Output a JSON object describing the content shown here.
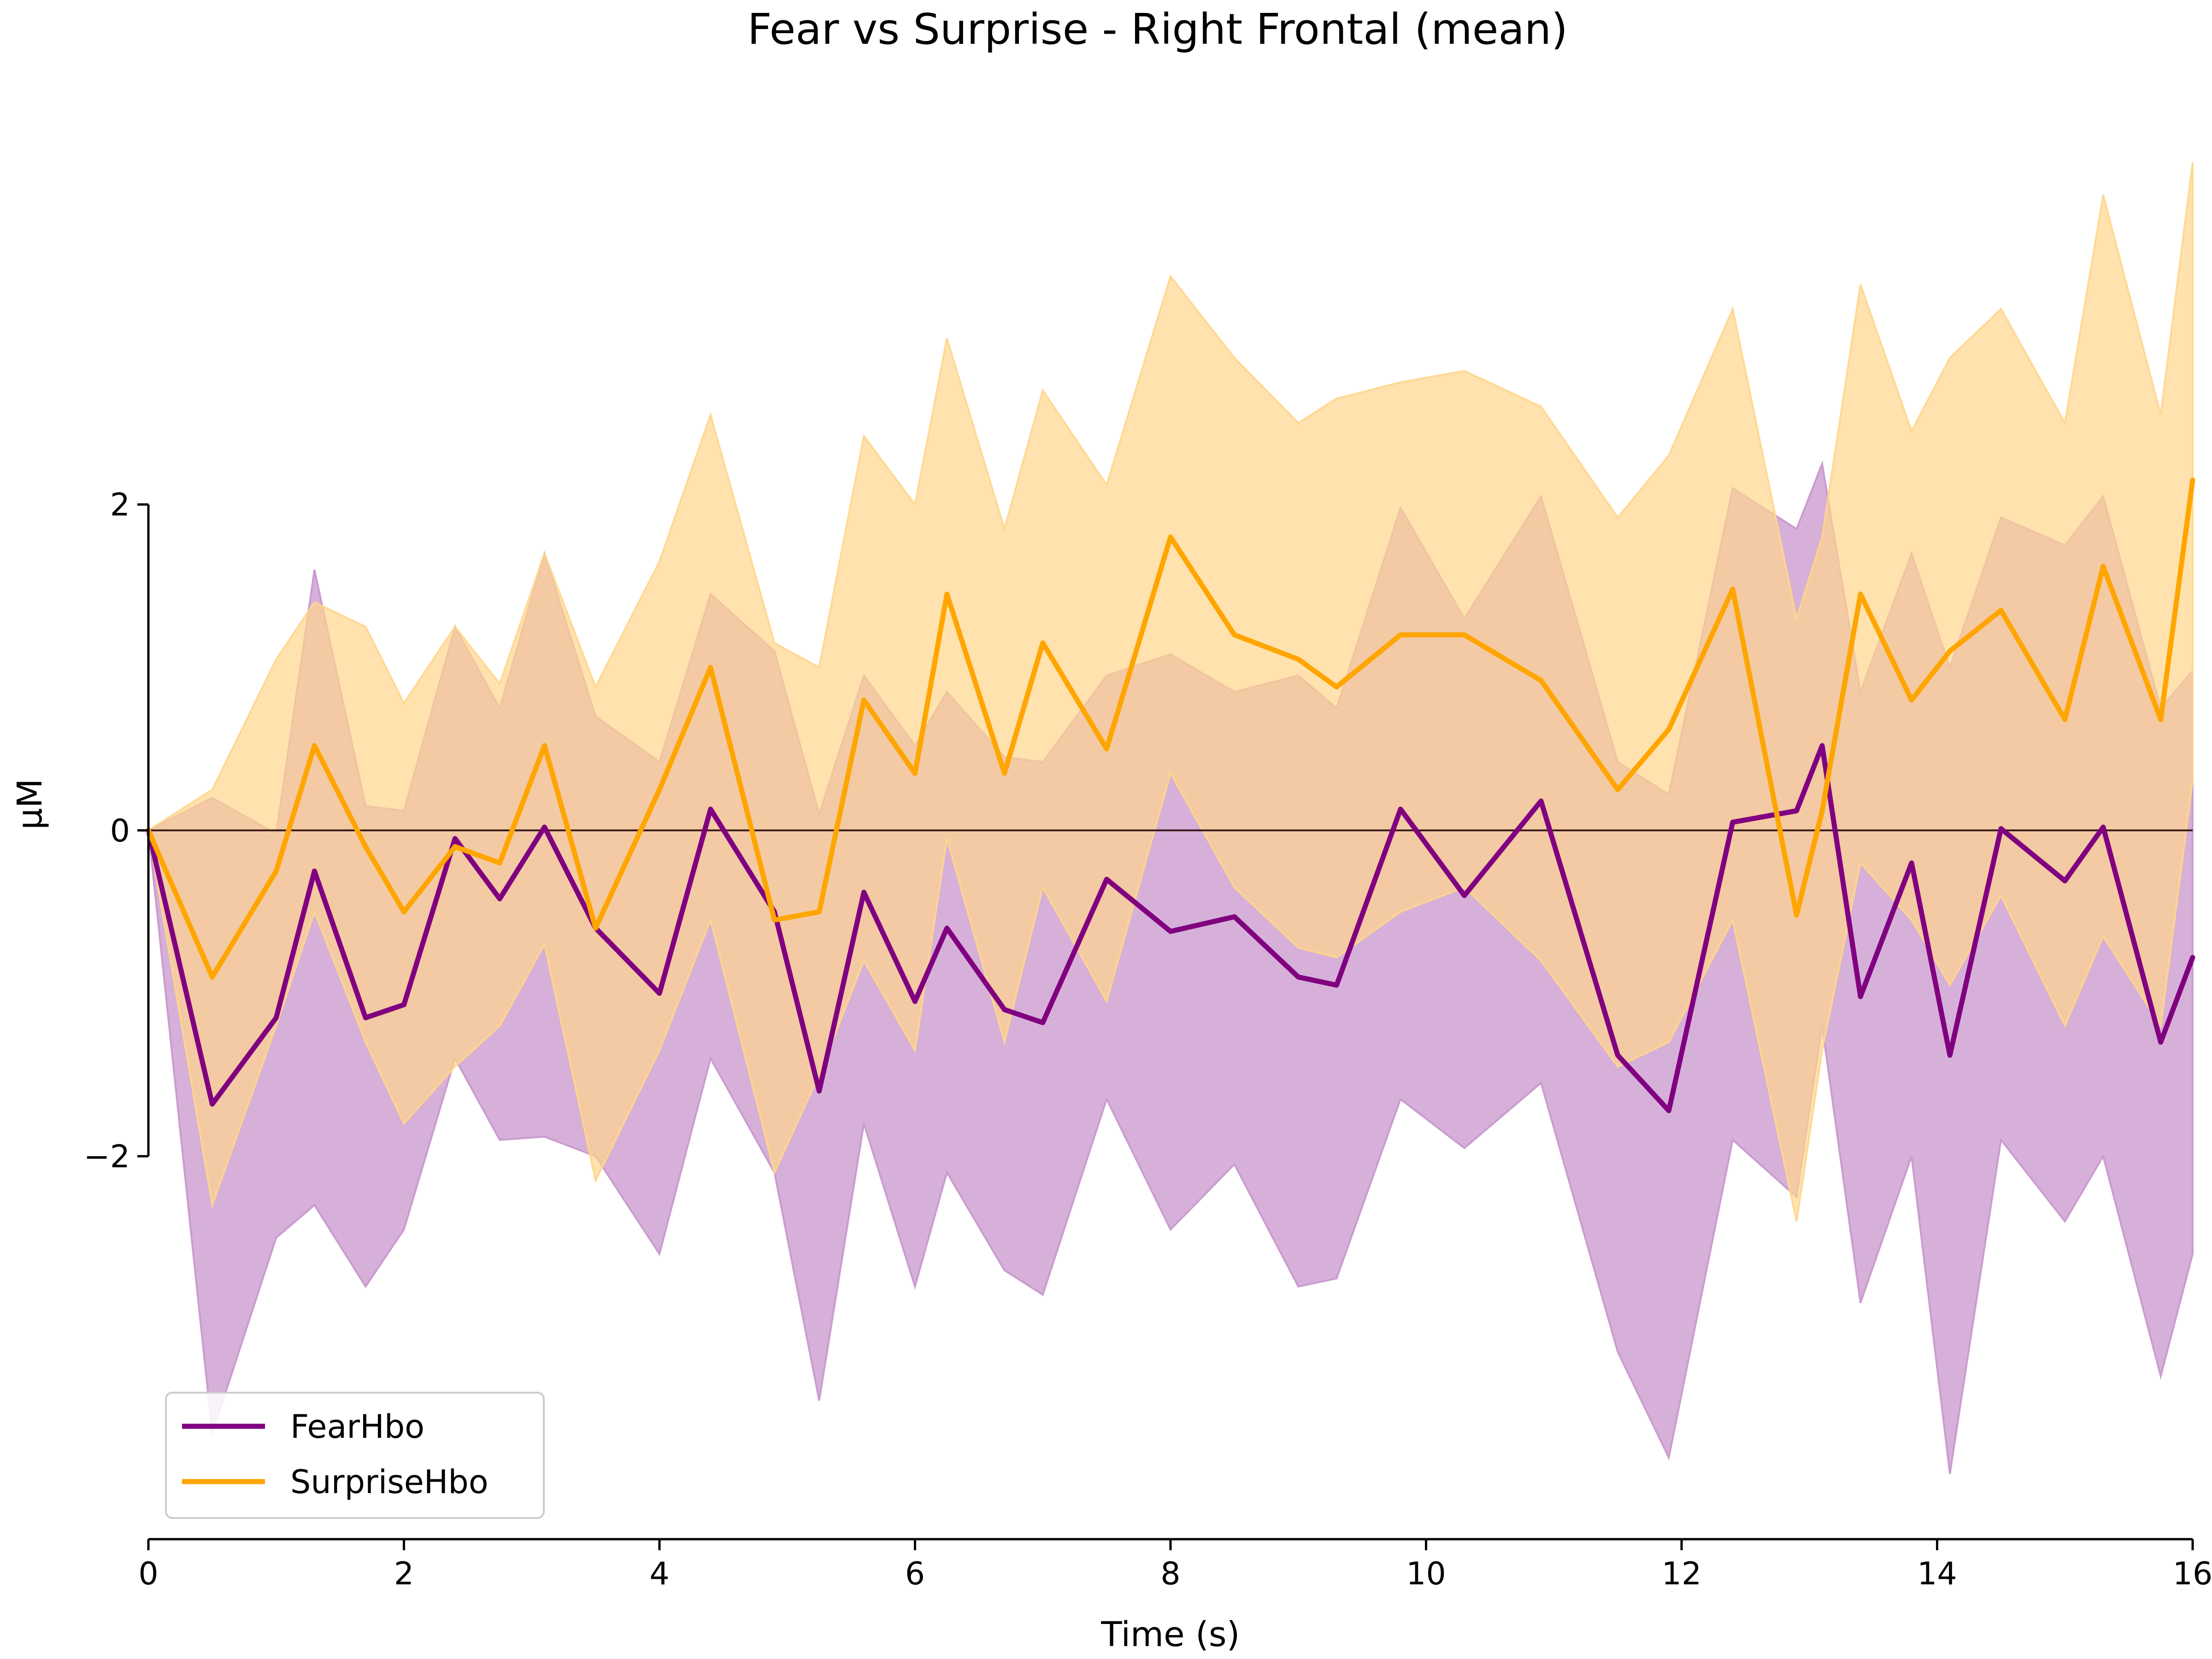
{
  "chart_data": {
    "type": "line",
    "title": "Fear vs Surprise - Right Frontal (mean)",
    "xlabel": "Time (s)",
    "ylabel": "µM",
    "xlim": [
      0,
      16
    ],
    "ylim": [
      -4.35,
      4.7
    ],
    "xticks": [
      0,
      2,
      4,
      6,
      8,
      10,
      12,
      14,
      16
    ],
    "xtick_labels": [
      "0",
      "2",
      "4",
      "6",
      "8",
      "10",
      "12",
      "14",
      "16"
    ],
    "yticks": [
      -2,
      0,
      2
    ],
    "ytick_labels": [
      "−2",
      "0",
      "2"
    ],
    "grid": false,
    "legend": {
      "placement": "lower-left"
    },
    "x": [
      0,
      0.5,
      1,
      1.3,
      1.7,
      2,
      2.4,
      2.75,
      3.1,
      3.5,
      4,
      4.4,
      4.9,
      5.25,
      5.6,
      6,
      6.25,
      6.7,
      7,
      7.5,
      8,
      8.5,
      9,
      9.3,
      9.8,
      10.3,
      10.9,
      11.5,
      11.9,
      12.4,
      12.9,
      13.1,
      13.4,
      13.8,
      14.1,
      14.5,
      15,
      15.3,
      15.75,
      16
    ],
    "series": [
      {
        "name": "FearHbo",
        "color": "#800080",
        "band_color": "#c896cc",
        "values": [
          0,
          -1.68,
          -1.15,
          -0.25,
          -1.15,
          -1.07,
          -0.05,
          -0.42,
          0.02,
          -0.6,
          -1.0,
          0.13,
          -0.5,
          -1.6,
          -0.38,
          -1.05,
          -0.6,
          -1.1,
          -1.18,
          -0.3,
          -0.62,
          -0.53,
          -0.9,
          -0.95,
          0.13,
          -0.4,
          0.18,
          -1.38,
          -1.72,
          0.05,
          0.12,
          0.52,
          -1.02,
          -0.2,
          -1.38,
          0.01,
          -0.31,
          0.02,
          -1.3,
          -0.78
        ],
        "lower": [
          0,
          -3.7,
          -2.5,
          -2.3,
          -2.8,
          -2.45,
          -1.4,
          -1.9,
          -1.88,
          -2.0,
          -2.6,
          -1.4,
          -2.1,
          -3.5,
          -1.8,
          -2.8,
          -2.1,
          -2.7,
          -2.85,
          -1.65,
          -2.45,
          -2.05,
          -2.8,
          -2.75,
          -1.65,
          -1.95,
          -1.55,
          -3.2,
          -3.85,
          -1.9,
          -2.25,
          -1.2,
          -2.9,
          -2.0,
          -3.95,
          -1.9,
          -2.4,
          -2.0,
          -3.35,
          -2.6
        ],
        "upper": [
          0,
          0.2,
          -0.02,
          1.6,
          0.15,
          0.12,
          1.25,
          0.75,
          1.7,
          0.7,
          0.42,
          1.45,
          1.1,
          0.1,
          0.95,
          0.52,
          0.85,
          0.45,
          0.42,
          0.95,
          1.08,
          0.85,
          0.95,
          0.75,
          1.98,
          1.3,
          2.05,
          0.42,
          0.22,
          2.1,
          1.85,
          2.25,
          0.85,
          1.7,
          1.0,
          1.92,
          1.75,
          2.05,
          0.75,
          0.98
        ]
      },
      {
        "name": "SurpriseHbo",
        "color": "#ffa500",
        "band_color": "#ffd68c",
        "values": [
          0,
          -0.9,
          -0.25,
          0.52,
          -0.1,
          -0.5,
          -0.1,
          -0.2,
          0.52,
          -0.6,
          0.25,
          1.0,
          -0.55,
          -0.5,
          0.8,
          0.35,
          1.45,
          0.35,
          1.15,
          0.5,
          1.8,
          1.2,
          1.05,
          0.88,
          1.2,
          1.2,
          0.92,
          0.25,
          0.62,
          1.48,
          -0.52,
          0.12,
          1.45,
          0.8,
          1.1,
          1.35,
          0.68,
          1.62,
          0.68,
          2.15
        ],
        "lower": [
          0,
          -2.3,
          -1.2,
          -0.5,
          -1.3,
          -1.8,
          -1.45,
          -1.2,
          -0.7,
          -2.15,
          -1.35,
          -0.55,
          -2.1,
          -1.5,
          -0.8,
          -1.35,
          -0.05,
          -1.3,
          -0.35,
          -1.05,
          0.35,
          -0.35,
          -0.72,
          -0.78,
          -0.5,
          -0.35,
          -0.8,
          -1.45,
          -1.3,
          -0.55,
          -2.4,
          -1.35,
          -0.2,
          -0.55,
          -0.95,
          -0.4,
          -1.2,
          -0.65,
          -1.2,
          0.3
        ],
        "upper": [
          0,
          0.25,
          1.05,
          1.4,
          1.25,
          0.78,
          1.25,
          0.9,
          1.7,
          0.88,
          1.65,
          2.55,
          1.15,
          1.0,
          2.42,
          2.0,
          3.02,
          1.85,
          2.7,
          2.12,
          3.4,
          2.9,
          2.5,
          2.65,
          2.75,
          2.82,
          2.6,
          1.92,
          2.3,
          3.2,
          1.3,
          1.8,
          3.35,
          2.45,
          2.9,
          3.2,
          2.5,
          3.9,
          2.55,
          4.1
        ]
      }
    ]
  }
}
